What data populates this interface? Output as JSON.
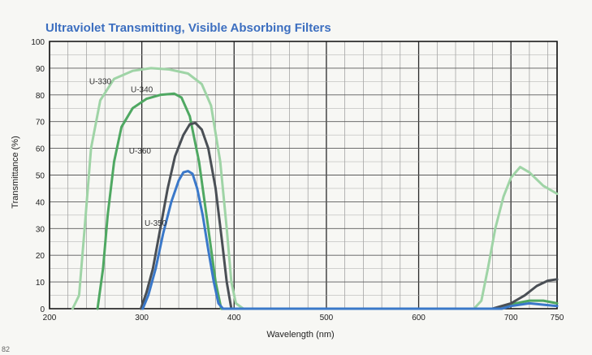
{
  "page_number": "82",
  "chart_data": {
    "type": "line",
    "title": "Ultraviolet Transmitting, Visible Absorbing Filters",
    "xlabel": "Wavelength (nm)",
    "ylabel": "Transmittance (%)",
    "xlim": [
      200,
      750
    ],
    "ylim": [
      0,
      100
    ],
    "x_ticks": [
      200,
      300,
      400,
      500,
      600,
      700,
      750
    ],
    "y_ticks": [
      0,
      10,
      20,
      30,
      40,
      50,
      60,
      70,
      80,
      90,
      100
    ],
    "grid": true,
    "series": [
      {
        "name": "U-330",
        "color": "#9fd4a6",
        "points": [
          [
            225,
            0
          ],
          [
            232,
            5
          ],
          [
            238,
            30
          ],
          [
            245,
            60
          ],
          [
            255,
            78
          ],
          [
            270,
            86
          ],
          [
            290,
            89
          ],
          [
            310,
            90
          ],
          [
            330,
            89.5
          ],
          [
            350,
            88
          ],
          [
            365,
            84
          ],
          [
            375,
            76
          ],
          [
            385,
            55
          ],
          [
            392,
            30
          ],
          [
            397,
            10
          ],
          [
            402,
            2
          ],
          [
            410,
            0
          ],
          [
            660,
            0
          ],
          [
            668,
            3
          ],
          [
            675,
            15
          ],
          [
            683,
            30
          ],
          [
            692,
            42
          ],
          [
            700,
            49
          ],
          [
            710,
            53
          ],
          [
            720,
            51
          ],
          [
            735,
            46
          ],
          [
            750,
            43
          ]
        ]
      },
      {
        "name": "U-340",
        "color": "#4fa862",
        "points": [
          [
            252,
            0
          ],
          [
            258,
            15
          ],
          [
            263,
            35
          ],
          [
            270,
            55
          ],
          [
            278,
            68
          ],
          [
            290,
            75
          ],
          [
            305,
            78.5
          ],
          [
            320,
            80
          ],
          [
            335,
            80.5
          ],
          [
            343,
            79
          ],
          [
            352,
            72
          ],
          [
            362,
            55
          ],
          [
            372,
            30
          ],
          [
            380,
            10
          ],
          [
            386,
            0
          ],
          [
            690,
            0
          ],
          [
            705,
            2
          ],
          [
            720,
            3
          ],
          [
            735,
            3
          ],
          [
            750,
            2
          ]
        ]
      },
      {
        "name": "U-360",
        "color": "#4a4f55",
        "points": [
          [
            299,
            0
          ],
          [
            305,
            6
          ],
          [
            312,
            15
          ],
          [
            320,
            30
          ],
          [
            328,
            45
          ],
          [
            336,
            57
          ],
          [
            345,
            65
          ],
          [
            352,
            69
          ],
          [
            358,
            69.5
          ],
          [
            365,
            67
          ],
          [
            372,
            60
          ],
          [
            380,
            45
          ],
          [
            387,
            25
          ],
          [
            392,
            10
          ],
          [
            397,
            0
          ],
          [
            680,
            0
          ],
          [
            700,
            2
          ],
          [
            715,
            5
          ],
          [
            728,
            8.5
          ],
          [
            740,
            10.5
          ],
          [
            750,
            11
          ]
        ]
      },
      {
        "name": "U-350",
        "color": "#3a78c9",
        "points": [
          [
            301,
            0
          ],
          [
            307,
            5
          ],
          [
            315,
            15
          ],
          [
            323,
            28
          ],
          [
            332,
            40
          ],
          [
            340,
            48
          ],
          [
            345,
            51
          ],
          [
            350,
            51.5
          ],
          [
            355,
            50.5
          ],
          [
            360,
            45
          ],
          [
            366,
            35
          ],
          [
            372,
            22
          ],
          [
            378,
            10
          ],
          [
            383,
            2
          ],
          [
            388,
            0
          ],
          [
            690,
            0
          ],
          [
            700,
            1
          ],
          [
            720,
            2
          ],
          [
            750,
            1
          ]
        ]
      }
    ]
  }
}
